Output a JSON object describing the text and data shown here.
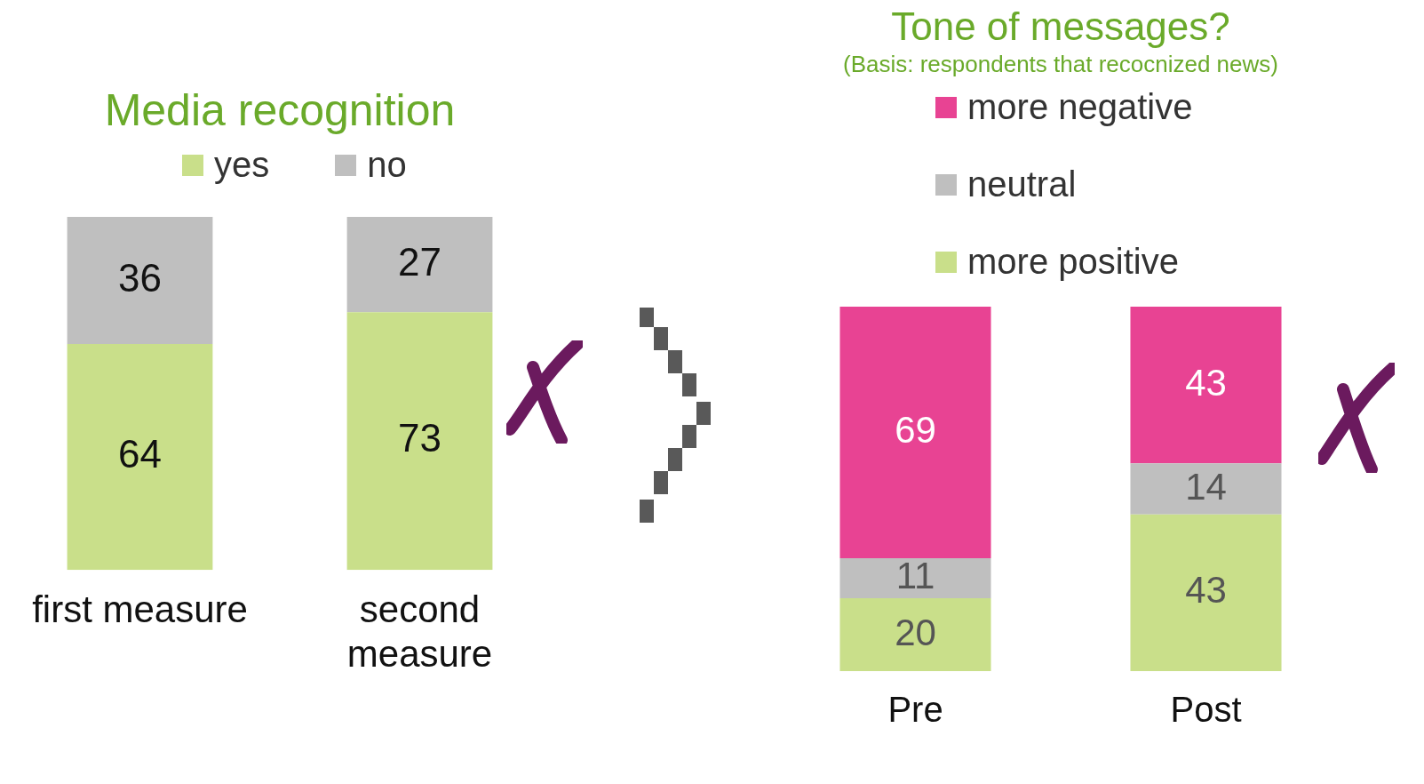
{
  "chart_data": [
    {
      "type": "bar",
      "title": "Media recognition",
      "categories": [
        "first measure",
        "second measure"
      ],
      "stacked": true,
      "ylim": [
        0,
        100
      ],
      "tick_labels": "x",
      "legend": "top",
      "data_labels": true,
      "series": [
        {
          "name": "yes",
          "color": "#c9df8a",
          "values": [
            64,
            73
          ]
        },
        {
          "name": "no",
          "color": "#bfbfbf",
          "values": [
            36,
            27
          ]
        }
      ]
    },
    {
      "type": "bar",
      "title": "Tone of messages?",
      "subtitle": "(Basis: respondents that recocnized news)",
      "categories": [
        "Pre",
        "Post"
      ],
      "stacked": true,
      "ylim": [
        0,
        100
      ],
      "tick_labels": "x",
      "legend": "top",
      "data_labels": true,
      "series": [
        {
          "name": "more positive",
          "color": "#c9df8a",
          "values": [
            20,
            43
          ]
        },
        {
          "name": "neutral",
          "color": "#bfbfbf",
          "values": [
            11,
            14
          ]
        },
        {
          "name": "more negative",
          "color": "#e84393",
          "values": [
            69,
            43
          ]
        }
      ]
    }
  ]
}
